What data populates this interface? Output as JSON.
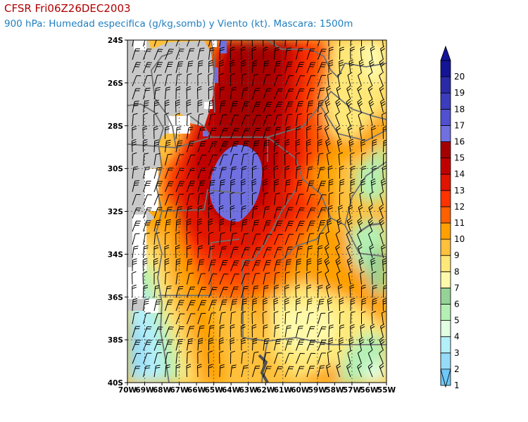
{
  "title": "CFSR Fri06Z26DEC2003",
  "subtitle": "900 hPa: Humedad especifica (g/kg,somb) y Viento (kt). Mascara: 1500m",
  "map": {
    "lon_range": [
      -70,
      -55
    ],
    "lat_range": [
      -40,
      -24
    ],
    "lat_ticks": [
      "24S",
      "26S",
      "28S",
      "30S",
      "32S",
      "34S",
      "36S",
      "38S",
      "40S"
    ],
    "lon_ticks": [
      "70W",
      "69W",
      "68W",
      "67W",
      "66W",
      "65W",
      "64W",
      "63W",
      "62W",
      "61W",
      "60W",
      "59W",
      "58W",
      "57W",
      "56W",
      "55W"
    ],
    "mask_color": "#c8c8c8",
    "border_color": "#707070",
    "wind_barb_color": "#000000"
  },
  "colorbar": {
    "levels": [
      "1",
      "2",
      "3",
      "4",
      "5",
      "6",
      "7",
      "8",
      "9",
      "10",
      "11",
      "12",
      "13",
      "14",
      "15",
      "16",
      "17",
      "18",
      "19",
      "20"
    ],
    "colors": [
      "#6ec8f8",
      "#96dcf8",
      "#b4f0fa",
      "#e1ffe1",
      "#b4f0b4",
      "#96d296",
      "#fffaaa",
      "#ffe878",
      "#ffc03c",
      "#ffa000",
      "#ff6000",
      "#ff3200",
      "#e11400",
      "#c00000",
      "#a50000",
      "#7070e0",
      "#5050d0",
      "#3c3cbe",
      "#2a2aa8",
      "#141496"
    ]
  }
}
